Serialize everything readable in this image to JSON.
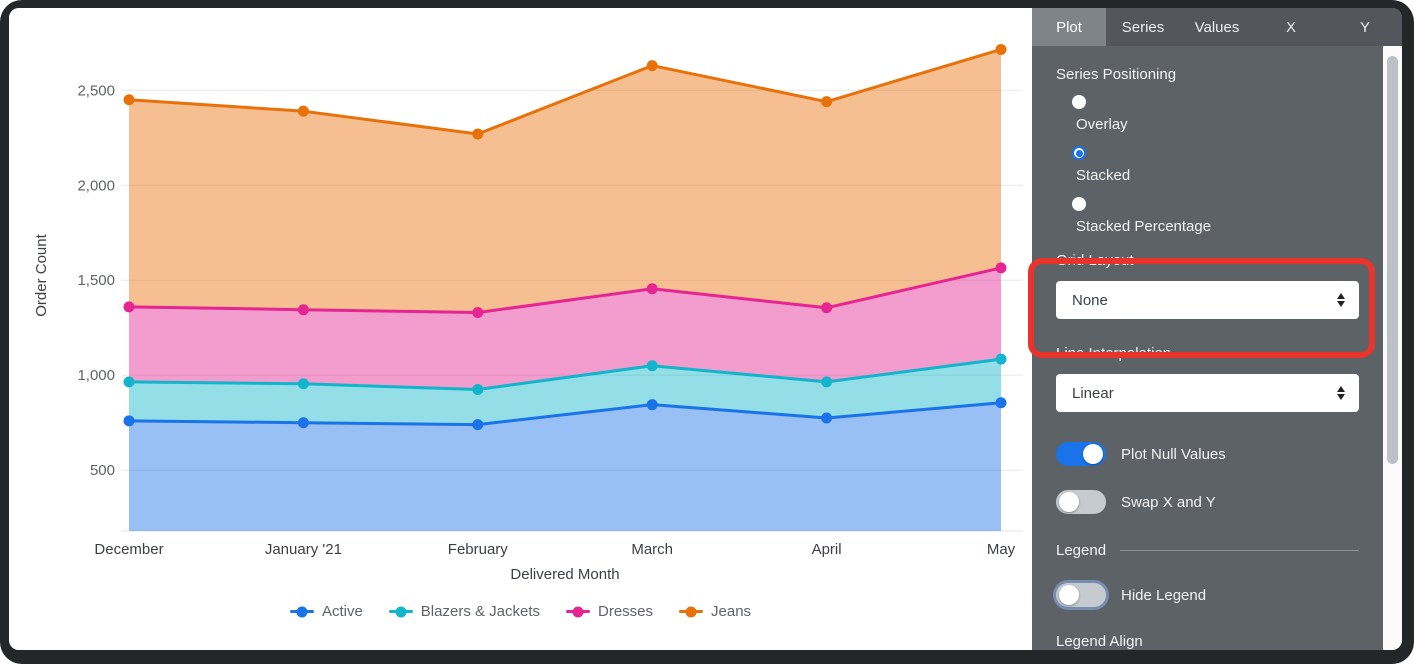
{
  "chart_data": {
    "type": "area",
    "stacked": true,
    "title": "",
    "xlabel": "Delivered Month",
    "ylabel": "Order Count",
    "x": [
      "December",
      "January '21",
      "February",
      "March",
      "April",
      "May"
    ],
    "series": [
      {
        "name": "Active",
        "color": "#1a73e8",
        "fill": "rgba(26,115,232,0.45)",
        "values": [
          760,
          750,
          740,
          845,
          775,
          855
        ],
        "cumulative": [
          760,
          750,
          740,
          845,
          775,
          855
        ]
      },
      {
        "name": "Blazers & Jackets",
        "color": "#12b5cb",
        "fill": "rgba(18,181,203,0.45)",
        "values": [
          205,
          205,
          185,
          205,
          190,
          230
        ],
        "cumulative": [
          965,
          955,
          925,
          1050,
          965,
          1085
        ]
      },
      {
        "name": "Dresses",
        "color": "#e52592",
        "fill": "rgba(229,37,146,0.45)",
        "values": [
          395,
          390,
          405,
          405,
          390,
          480
        ],
        "cumulative": [
          1360,
          1345,
          1330,
          1455,
          1355,
          1565
        ]
      },
      {
        "name": "Jeans",
        "color": "#e8710a",
        "fill": "rgba(232,113,10,0.45)",
        "values": [
          1090,
          1045,
          940,
          1175,
          1085,
          1150
        ],
        "cumulative": [
          2450,
          2390,
          2270,
          2630,
          2440,
          2715
        ]
      }
    ],
    "yticks": [
      500,
      1000,
      1500,
      2000,
      2500
    ],
    "ytick_labels": [
      "500",
      "1,000",
      "1,500",
      "2,000",
      "2,500"
    ],
    "ylim": [
      180,
      2870
    ],
    "grid": true,
    "legend_position": "bottom-center"
  },
  "panel": {
    "tabs": [
      {
        "label": "Plot",
        "active": true
      },
      {
        "label": "Series",
        "active": false
      },
      {
        "label": "Values",
        "active": false
      },
      {
        "label": "X",
        "active": false
      },
      {
        "label": "Y",
        "active": false
      }
    ],
    "series_positioning": {
      "label": "Series Positioning",
      "options": [
        "Overlay",
        "Stacked",
        "Stacked Percentage"
      ],
      "selected": "Stacked"
    },
    "grid_layout": {
      "label": "Grid Layout",
      "value": "None",
      "highlighted": true,
      "highlight_color": "#e8342c"
    },
    "line_interpolation": {
      "label": "Line Interpolation",
      "value": "Linear"
    },
    "toggles": {
      "plot_null": {
        "label": "Plot Null Values",
        "on": true
      },
      "swap_xy": {
        "label": "Swap X and Y",
        "on": false
      },
      "hide_legend": {
        "label": "Hide Legend",
        "on": false,
        "focused": true
      }
    },
    "legend_section_label": "Legend",
    "legend_align_label": "Legend Align",
    "accent_color": "#1a73e8"
  }
}
